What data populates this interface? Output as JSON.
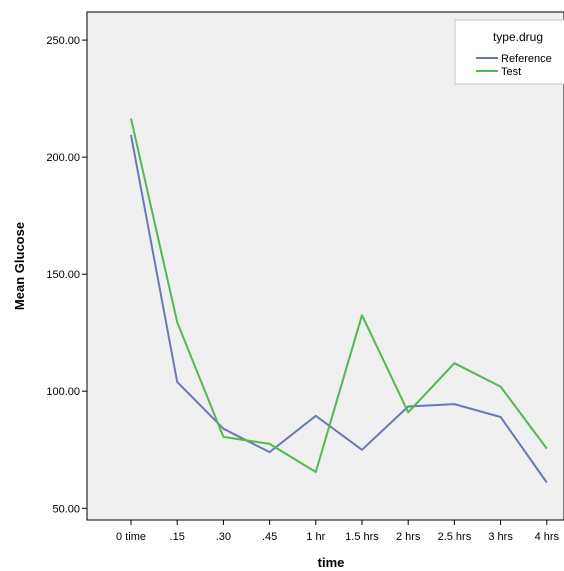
{
  "chart_data": {
    "type": "line",
    "xlabel": "time",
    "ylabel": "Mean Glucose",
    "categories": [
      "0 time",
      ".15",
      ".30",
      ".45",
      "1 hr",
      "1.5 hrs",
      "2 hrs",
      "2.5 hrs",
      "3 hrs",
      "4 hrs"
    ],
    "ylim": [
      45,
      262
    ],
    "yticks": [
      50,
      100,
      150,
      200,
      250
    ],
    "ytick_labels": [
      "50.00",
      "100.00",
      "150.00",
      "200.00",
      "250.00"
    ],
    "grid": false,
    "legend": {
      "title": "type.drug",
      "position": "top-right"
    },
    "series": [
      {
        "name": "Reference",
        "color": "#6a77bd",
        "values": [
          209.5,
          104,
          84,
          74,
          89.5,
          75,
          93.5,
          94.5,
          89,
          61
        ]
      },
      {
        "name": "Test",
        "color": "#4cbd4c",
        "values": [
          216.5,
          129.5,
          80.5,
          77.5,
          65.5,
          132.5,
          91,
          112,
          102,
          75.5
        ]
      }
    ]
  }
}
